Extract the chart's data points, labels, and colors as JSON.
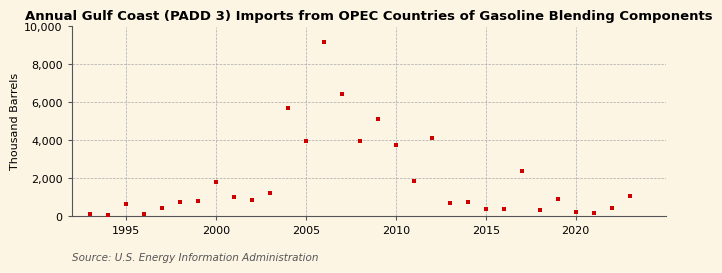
{
  "title": "Annual Gulf Coast (PADD 3) Imports from OPEC Countries of Gasoline Blending Components",
  "ylabel": "Thousand Barrels",
  "source": "Source: U.S. Energy Information Administration",
  "background_color": "#fdf5e4",
  "marker_color": "#cc0000",
  "years": [
    1993,
    1994,
    1995,
    1996,
    1997,
    1998,
    1999,
    2000,
    2001,
    2002,
    2003,
    2004,
    2005,
    2006,
    2007,
    2008,
    2009,
    2010,
    2011,
    2012,
    2013,
    2014,
    2015,
    2016,
    2017,
    2018,
    2019,
    2020,
    2021,
    2022,
    2023
  ],
  "values": [
    100,
    50,
    620,
    130,
    450,
    730,
    820,
    1800,
    1030,
    870,
    1200,
    5700,
    3950,
    9200,
    6450,
    3950,
    5100,
    3750,
    1850,
    4150,
    700,
    730,
    380,
    380,
    2400,
    320,
    900,
    200,
    150,
    450,
    1050
  ],
  "xlim": [
    1992,
    2025
  ],
  "ylim": [
    0,
    10000
  ],
  "yticks": [
    0,
    2000,
    4000,
    6000,
    8000,
    10000
  ],
  "xticks": [
    1995,
    2000,
    2005,
    2010,
    2015,
    2020
  ],
  "grid_color": "#aaaaaa",
  "title_fontsize": 9.5,
  "axis_fontsize": 8,
  "ylabel_fontsize": 8,
  "source_fontsize": 7.5
}
